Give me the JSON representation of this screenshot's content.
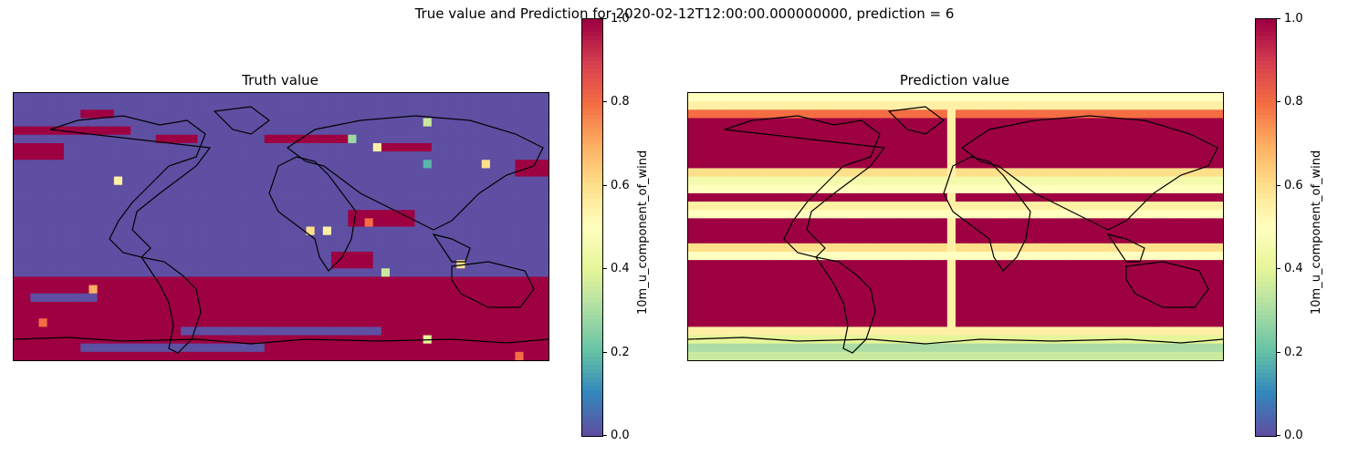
{
  "figure": {
    "suptitle": "True value and Prediction for 2020-02-12T12:00:00.000000000, prediction = 6"
  },
  "colormap": {
    "name": "Spectral_r",
    "stops": [
      "#5e4fa2",
      "#3288bd",
      "#66c2a5",
      "#abdda4",
      "#e6f598",
      "#ffffbf",
      "#fee08b",
      "#fdae61",
      "#f46d43",
      "#d53e4f",
      "#9e0142"
    ]
  },
  "chart_data": [
    {
      "type": "heatmap",
      "title": "Truth value",
      "colorbar_label": "10m_u_component_of_wind",
      "vmin": 0.0,
      "vmax": 1.0,
      "colorbar_ticks": [
        "0.0",
        "0.2",
        "0.4",
        "0.6",
        "0.8",
        "1.0"
      ],
      "grid_shape": [
        32,
        64
      ],
      "background_value": 0.0,
      "high_value": 1.0,
      "high_region_rows": [
        [
          2,
          3,
          8,
          12
        ],
        [
          4,
          5,
          0,
          14
        ],
        [
          5,
          6,
          17,
          22
        ],
        [
          6,
          8,
          0,
          6
        ],
        [
          5,
          6,
          30,
          40
        ],
        [
          6,
          7,
          44,
          50
        ],
        [
          8,
          10,
          60,
          64
        ],
        [
          14,
          16,
          40,
          48
        ],
        [
          19,
          21,
          38,
          43
        ],
        [
          22,
          32,
          0,
          64
        ]
      ],
      "low_region_rows": [
        [
          24,
          25,
          2,
          10
        ],
        [
          28,
          29,
          20,
          44
        ],
        [
          30,
          31,
          8,
          30
        ]
      ],
      "point_values": [
        [
          3,
          49,
          0.35
        ],
        [
          5,
          40,
          0.28
        ],
        [
          6,
          43,
          0.55
        ],
        [
          8,
          49,
          0.18
        ],
        [
          8,
          56,
          0.6
        ],
        [
          10,
          12,
          0.55
        ],
        [
          15,
          42,
          0.8
        ],
        [
          16,
          35,
          0.6
        ],
        [
          16,
          37,
          0.55
        ],
        [
          20,
          53,
          0.6
        ],
        [
          21,
          44,
          0.35
        ],
        [
          23,
          9,
          0.7
        ],
        [
          27,
          3,
          0.8
        ],
        [
          29,
          49,
          0.4
        ],
        [
          31,
          60,
          0.8
        ]
      ]
    },
    {
      "type": "heatmap",
      "title": "Prediction value",
      "colorbar_label": "10m_u_component_of_wind",
      "vmin": 0.0,
      "vmax": 1.0,
      "colorbar_ticks": [
        "0.0",
        "0.2",
        "0.4",
        "0.6",
        "0.8",
        "1.0"
      ],
      "grid_shape": [
        32,
        64
      ],
      "background_value": 1.0,
      "row_profile": [
        0.5,
        0.55,
        0.8,
        1.0,
        1.0,
        1.0,
        1.0,
        1.0,
        1.0,
        0.6,
        0.45,
        0.5,
        1.0,
        0.55,
        0.5,
        1.0,
        1.0,
        1.0,
        0.6,
        0.5,
        1.0,
        1.0,
        1.0,
        1.0,
        1.0,
        1.0,
        1.0,
        1.0,
        0.55,
        0.4,
        0.3,
        0.35
      ],
      "center_column": 31,
      "center_column_values": 0.55
    }
  ]
}
